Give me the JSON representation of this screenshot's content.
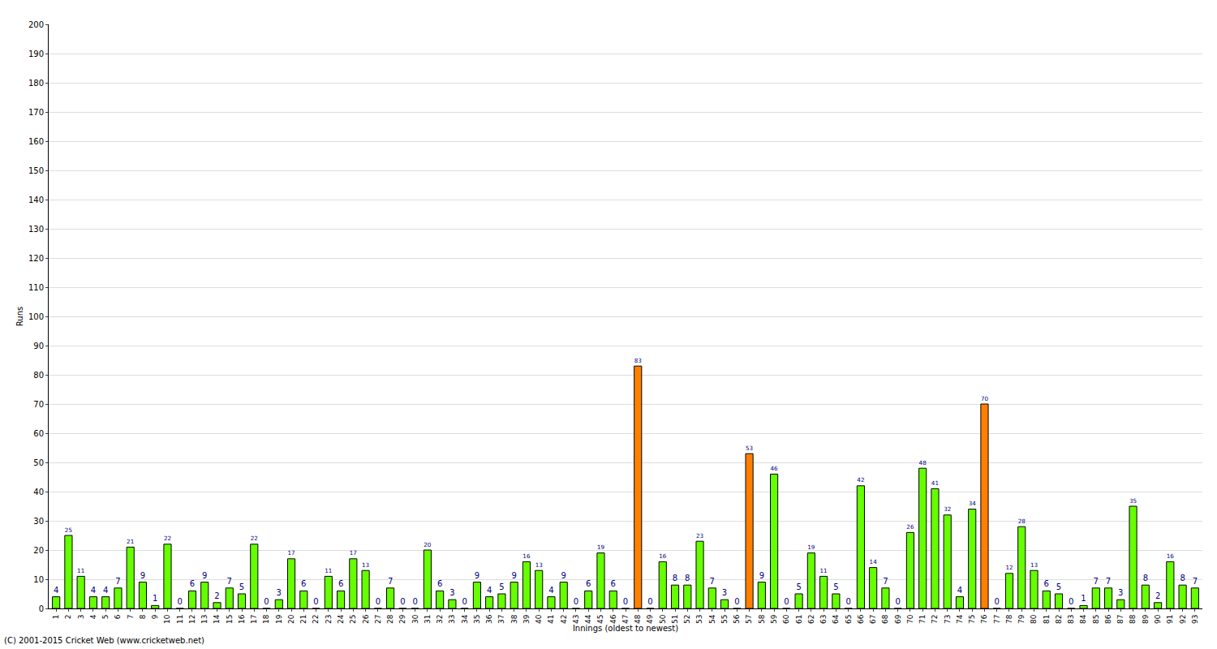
{
  "chart_data": {
    "type": "bar",
    "x_label": "Innings (oldest to newest)",
    "y_label": "Runs",
    "annotations": [
      "(C) 2001-2015 Cricket Web (www.cricketweb.net)"
    ],
    "categories": [
      "1",
      "2",
      "3",
      "4",
      "5",
      "6",
      "7",
      "8",
      "9",
      "10",
      "11",
      "12",
      "13",
      "14",
      "15",
      "16",
      "17",
      "18",
      "19",
      "20",
      "21",
      "22",
      "23",
      "24",
      "25",
      "26",
      "27",
      "28",
      "29",
      "30",
      "31",
      "32",
      "33",
      "34",
      "35",
      "36",
      "37",
      "38",
      "39",
      "40",
      "41",
      "42",
      "43",
      "44",
      "45",
      "46",
      "47",
      "48",
      "49",
      "50",
      "51",
      "52",
      "53",
      "54",
      "55",
      "56",
      "57",
      "58",
      "59",
      "60",
      "61",
      "62",
      "63",
      "64",
      "65",
      "66",
      "67",
      "68",
      "69",
      "70",
      "71",
      "72",
      "73",
      "74",
      "75",
      "76",
      "77",
      "78",
      "79",
      "80",
      "81",
      "82",
      "83",
      "84",
      "85",
      "86",
      "87",
      "88",
      "89",
      "90",
      "91",
      "92",
      "93"
    ],
    "values": [
      4,
      25,
      11,
      4,
      4,
      7,
      21,
      9,
      1,
      22,
      0,
      6,
      9,
      2,
      7,
      5,
      22,
      0,
      3,
      17,
      6,
      0,
      11,
      6,
      17,
      13,
      0,
      7,
      0,
      0,
      20,
      6,
      3,
      0,
      9,
      4,
      5,
      9,
      16,
      13,
      4,
      9,
      0,
      6,
      19,
      6,
      0,
      83,
      0,
      16,
      8,
      8,
      23,
      7,
      3,
      0,
      53,
      9,
      46,
      0,
      5,
      19,
      11,
      5,
      0,
      42,
      14,
      7,
      0,
      26,
      48,
      41,
      32,
      4,
      34,
      70,
      0,
      12,
      28,
      13,
      6,
      5,
      0,
      1,
      7,
      7,
      3,
      35,
      8,
      2,
      16,
      8,
      7
    ],
    "colors": [
      "#66ff00",
      "#66ff00",
      "#66ff00",
      "#66ff00",
      "#66ff00",
      "#66ff00",
      "#66ff00",
      "#66ff00",
      "#66ff00",
      "#66ff00",
      "#66ff00",
      "#66ff00",
      "#66ff00",
      "#66ff00",
      "#66ff00",
      "#66ff00",
      "#66ff00",
      "#66ff00",
      "#66ff00",
      "#66ff00",
      "#66ff00",
      "#66ff00",
      "#66ff00",
      "#66ff00",
      "#66ff00",
      "#66ff00",
      "#66ff00",
      "#66ff00",
      "#66ff00",
      "#66ff00",
      "#66ff00",
      "#66ff00",
      "#66ff00",
      "#66ff00",
      "#66ff00",
      "#66ff00",
      "#66ff00",
      "#66ff00",
      "#66ff00",
      "#66ff00",
      "#66ff00",
      "#66ff00",
      "#66ff00",
      "#66ff00",
      "#66ff00",
      "#66ff00",
      "#66ff00",
      "#ff8000",
      "#66ff00",
      "#66ff00",
      "#66ff00",
      "#66ff00",
      "#66ff00",
      "#66ff00",
      "#66ff00",
      "#66ff00",
      "#ff8000",
      "#66ff00",
      "#66ff00",
      "#66ff00",
      "#66ff00",
      "#66ff00",
      "#66ff00",
      "#66ff00",
      "#66ff00",
      "#66ff00",
      "#66ff00",
      "#66ff00",
      "#66ff00",
      "#66ff00",
      "#66ff00",
      "#66ff00",
      "#66ff00",
      "#66ff00",
      "#66ff00",
      "#ff8000",
      "#66ff00",
      "#66ff00",
      "#66ff00",
      "#66ff00",
      "#66ff00",
      "#66ff00",
      "#66ff00",
      "#66ff00",
      "#66ff00",
      "#66ff00",
      "#66ff00",
      "#66ff00",
      "#66ff00",
      "#66ff00",
      "#66ff00",
      "#66ff00",
      "#66ff00"
    ],
    "ylim": [
      0,
      200
    ],
    "yticks": [
      0,
      10,
      20,
      30,
      40,
      50,
      60,
      70,
      80,
      90,
      100,
      110,
      120,
      130,
      140,
      150,
      160,
      170,
      180,
      190,
      200
    ],
    "grid": true,
    "data_labels": true
  }
}
